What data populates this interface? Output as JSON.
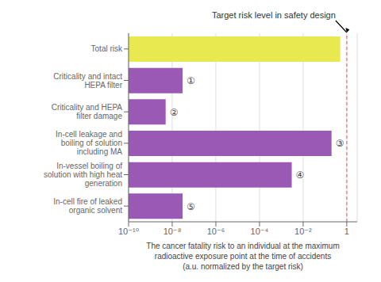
{
  "chart_data": {
    "type": "bar",
    "orientation": "horizontal",
    "log": "x",
    "categories": [
      "In-cell fire of leaked\norganic solvent",
      "In-vessel boiling of\nsolution with high heat\ngeneration",
      "In-cell leakage and\nboiling of solution\nincluding MA",
      "Criticality and HEPA\nfilter damage",
      "Criticality and intact\nHEPA filter",
      "Total risk"
    ],
    "values": [
      3e-08,
      0.003,
      0.2,
      5e-09,
      3e-08,
      0.5
    ],
    "colors": [
      "#9b59b6",
      "#9b59b6",
      "#9b59b6",
      "#9b59b6",
      "#9b59b6",
      "#e8e850"
    ],
    "bar_labels": [
      "⑤",
      "④",
      "③",
      "②",
      "①",
      null
    ],
    "xlim": [
      1e-10,
      3.0
    ],
    "xticks": [
      {
        "value": 1e-10,
        "label": "10⁻¹⁰"
      },
      {
        "value": 1e-08,
        "label": "10⁻⁸"
      },
      {
        "value": 1e-06,
        "label": "10⁻⁶"
      },
      {
        "value": 0.0001,
        "label": "10⁻⁴"
      },
      {
        "value": 0.01,
        "label": "10⁻²"
      },
      1
    ],
    "x_label": "The cancer fatality risk to an individual at the maximum\nradioactive exposure point at the time of accidents\n(a.u. normalized by the target risk)",
    "annotation": {
      "x": 1.0,
      "text": "Target risk level in safety design",
      "color": "#d08080",
      "line_style": "dashed"
    },
    "grid": true
  }
}
